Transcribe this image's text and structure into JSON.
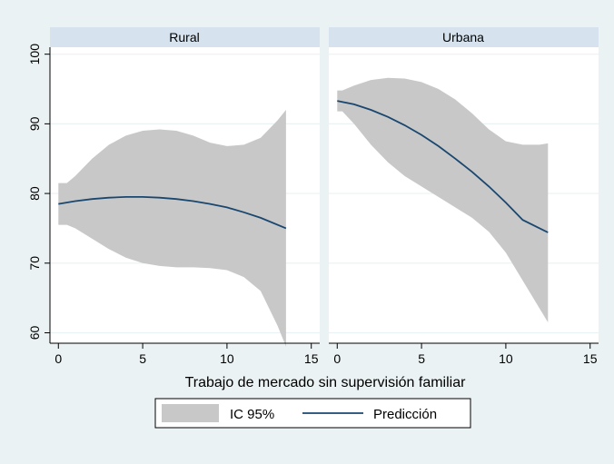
{
  "chart_data": {
    "type": "line",
    "xlabel": "Trabajo de mercado sin supervisión familiar",
    "ylabel": "",
    "xlim": [
      -0.5,
      15.5
    ],
    "ylim": [
      58.5,
      101
    ],
    "x_ticks": [
      0,
      5,
      10,
      15
    ],
    "y_ticks": [
      60,
      70,
      80,
      90,
      100
    ],
    "grid": "horizontal",
    "legend": {
      "position": "bottom",
      "entries": [
        {
          "label": "IC 95%",
          "kind": "band",
          "color": "#c8c8c8"
        },
        {
          "label": "Predicción",
          "kind": "line",
          "color": "#1a476f"
        }
      ]
    },
    "panels": [
      {
        "title": "Rural",
        "prediction": {
          "x": [
            0,
            1,
            2,
            3,
            4,
            5,
            6,
            7,
            8,
            9,
            10,
            11,
            12,
            13.5
          ],
          "y": [
            78.5,
            78.9,
            79.2,
            79.4,
            79.5,
            79.5,
            79.4,
            79.2,
            78.9,
            78.5,
            78.0,
            77.3,
            76.5,
            75.0
          ]
        },
        "ci_upper": {
          "x": [
            0,
            0.5,
            1,
            2,
            3,
            4,
            5,
            6,
            7,
            8,
            9,
            10,
            11,
            12,
            13,
            13.5
          ],
          "y": [
            81.5,
            81.5,
            82.5,
            85,
            87,
            88.3,
            89,
            89.2,
            89,
            88.3,
            87.3,
            86.8,
            87.0,
            88.0,
            90.5,
            92
          ]
        },
        "ci_lower": {
          "x": [
            0,
            0.5,
            1,
            2,
            3,
            4,
            5,
            6,
            7,
            8,
            9,
            10,
            11,
            12,
            13,
            13.5
          ],
          "y": [
            75.5,
            75.5,
            75.0,
            73.5,
            72.0,
            70.8,
            70.0,
            69.6,
            69.4,
            69.4,
            69.3,
            69.0,
            68.0,
            66.0,
            61.0,
            58.0
          ]
        }
      },
      {
        "title": "Urbana",
        "prediction": {
          "x": [
            0,
            1,
            2,
            3,
            4,
            5,
            6,
            7,
            8,
            9,
            10,
            11,
            12.5
          ],
          "y": [
            93.3,
            92.8,
            92.0,
            91.0,
            89.8,
            88.4,
            86.8,
            85.0,
            83.1,
            81.0,
            78.7,
            76.2,
            74.4
          ]
        },
        "ci_upper": {
          "x": [
            0,
            0.3,
            1,
            2,
            3,
            4,
            5,
            6,
            7,
            8,
            9,
            10,
            11,
            12,
            12.5
          ],
          "y": [
            94.8,
            94.8,
            95.5,
            96.3,
            96.6,
            96.5,
            96.0,
            95.0,
            93.5,
            91.5,
            89.2,
            87.5,
            87.0,
            87.0,
            87.2
          ]
        },
        "ci_lower": {
          "x": [
            0,
            0.3,
            1,
            2,
            3,
            4,
            5,
            6,
            7,
            8,
            9,
            10,
            11,
            12,
            12.5
          ],
          "y": [
            91.8,
            91.8,
            90.0,
            87.0,
            84.5,
            82.5,
            81.0,
            79.5,
            78.0,
            76.5,
            74.5,
            71.5,
            67.5,
            63.5,
            61.5
          ]
        }
      }
    ]
  }
}
